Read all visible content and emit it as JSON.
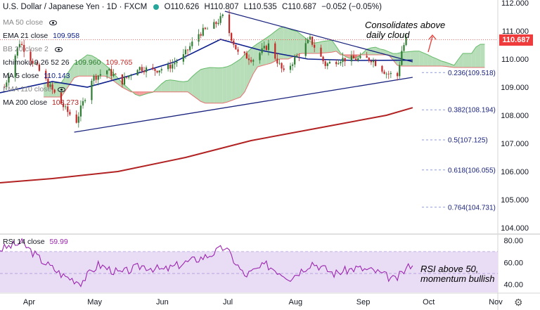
{
  "header": {
    "symbol": "U.S. Dollar / Japanese Yen · 1D · FXCM",
    "open": "O110.626",
    "high": "H110.807",
    "low": "L110.535",
    "close": "C110.687",
    "change": "−0.052 (−0.05%)"
  },
  "indicators": {
    "ma50": {
      "label": "MA 50 close"
    },
    "ema21": {
      "label": "EMA 21 close",
      "value": "109.958"
    },
    "bb": {
      "label": "BB 20 close 2"
    },
    "ichimoku": {
      "label": "Ichimoku 9 26 52 26",
      "value1": "109.960",
      "value2": "109.765"
    },
    "ma5": {
      "label": "MA 5 close",
      "value": "110.143"
    },
    "ema110": {
      "label": "EMA 110 close"
    },
    "ma200": {
      "label": "MA 200 close",
      "value": "108.273"
    },
    "rsi": {
      "label": "RSI 14 close",
      "value": "59.99"
    }
  },
  "annotations": {
    "consolidates_line1": "Consolidates above",
    "consolidates_line2": "daily cloud",
    "rsi_line1": "RSI above 50,",
    "rsi_line2": "momentum bullish"
  },
  "price_tag": "110.687",
  "colors": {
    "ma200": "#b22222",
    "ema21": "#0d1f8c",
    "cloud_bull": "#a5d6a7",
    "cloud_bear": "#f48a8a",
    "candle_up": "#2e7d32",
    "candle_down": "#c62828",
    "rsi_line": "#9c27b0",
    "rsi_band": "#e9dcf5"
  },
  "chart_data": {
    "type": "candlestick",
    "title": "U.S. Dollar / Japanese Yen · 1D · FXCM",
    "x_tick_labels": [
      "Apr",
      "May",
      "Jun",
      "Jul",
      "Aug",
      "Sep",
      "Oct",
      "Nov"
    ],
    "y_tick_labels": [
      "112.000",
      "111.000",
      "110.000",
      "109.000",
      "108.000",
      "107.000",
      "106.000",
      "105.000",
      "104.000"
    ],
    "ylim": [
      103.8,
      112.1
    ],
    "current_price": 110.687,
    "close_series": {
      "name": "close",
      "points": [
        [
          "2021-03-24",
          109.0
        ],
        [
          "2021-03-31",
          110.6
        ],
        [
          "2021-04-07",
          109.8
        ],
        [
          "2021-04-14",
          109.0
        ],
        [
          "2021-04-21",
          108.2
        ],
        [
          "2021-04-26",
          107.8
        ],
        [
          "2021-05-03",
          109.3
        ],
        [
          "2021-05-10",
          109.6
        ],
        [
          "2021-05-17",
          109.2
        ],
        [
          "2021-05-24",
          109.7
        ],
        [
          "2021-05-31",
          109.6
        ],
        [
          "2021-06-07",
          109.7
        ],
        [
          "2021-06-14",
          110.1
        ],
        [
          "2021-06-21",
          110.9
        ],
        [
          "2021-06-28",
          111.2
        ],
        [
          "2021-07-02",
          111.5
        ],
        [
          "2021-07-09",
          110.2
        ],
        [
          "2021-07-16",
          110.0
        ],
        [
          "2021-07-23",
          110.5
        ],
        [
          "2021-07-30",
          109.5
        ],
        [
          "2021-08-06",
          110.2
        ],
        [
          "2021-08-11",
          110.7
        ],
        [
          "2021-08-18",
          109.8
        ],
        [
          "2021-08-25",
          110.0
        ],
        [
          "2021-09-01",
          110.0
        ],
        [
          "2021-09-08",
          110.0
        ],
        [
          "2021-09-15",
          109.5
        ],
        [
          "2021-09-20",
          109.4
        ],
        [
          "2021-09-22",
          110.3
        ],
        [
          "2021-09-24",
          110.7
        ]
      ]
    },
    "ma200_series": {
      "name": "MA 200 close",
      "points": [
        [
          "2021-03-22",
          105.6
        ],
        [
          "2021-04-15",
          105.75
        ],
        [
          "2021-05-15",
          106.0
        ],
        [
          "2021-06-15",
          106.5
        ],
        [
          "2021-07-15",
          107.1
        ],
        [
          "2021-08-15",
          107.55
        ],
        [
          "2021-09-15",
          108.0
        ],
        [
          "2021-09-27",
          108.27
        ]
      ]
    },
    "ema21_series": {
      "name": "EMA 21 close",
      "points": [
        [
          "2021-03-22",
          108.8
        ],
        [
          "2021-04-15",
          109.2
        ],
        [
          "2021-05-01",
          109.0
        ],
        [
          "2021-05-20",
          109.4
        ],
        [
          "2021-06-10",
          109.9
        ],
        [
          "2021-07-01",
          110.7
        ],
        [
          "2021-07-20",
          110.3
        ],
        [
          "2021-08-10",
          110.0
        ],
        [
          "2021-09-01",
          109.95
        ],
        [
          "2021-09-27",
          109.96
        ]
      ]
    },
    "trendlines": [
      {
        "from": [
          "2021-04-25",
          107.4
        ],
        "to": [
          "2021-09-27",
          109.35
        ]
      },
      {
        "from": [
          "2021-07-03",
          111.7
        ],
        "to": [
          "2021-09-27",
          109.9
        ]
      }
    ],
    "fibonacci_levels": [
      {
        "label": "0.236(109.518)",
        "value": 109.518
      },
      {
        "label": "0.382(108.194)",
        "value": 108.194
      },
      {
        "label": "0.5(107.125)",
        "value": 107.125
      },
      {
        "label": "0.618(106.055)",
        "value": 106.055
      },
      {
        "label": "0.764(104.731)",
        "value": 104.731
      }
    ],
    "rsi": {
      "name": "RSI 14 close",
      "ylim": [
        34,
        84
      ],
      "y_tick_labels": [
        "80.00",
        "60.00",
        "40.00"
      ],
      "band": [
        30,
        70
      ],
      "points": [
        [
          "2021-03-22",
          72
        ],
        [
          "2021-04-01",
          78
        ],
        [
          "2021-04-10",
          62
        ],
        [
          "2021-04-20",
          48
        ],
        [
          "2021-04-28",
          42
        ],
        [
          "2021-05-06",
          58
        ],
        [
          "2021-05-16",
          50
        ],
        [
          "2021-05-26",
          57
        ],
        [
          "2021-06-05",
          53
        ],
        [
          "2021-06-15",
          60
        ],
        [
          "2021-06-25",
          66
        ],
        [
          "2021-07-03",
          74
        ],
        [
          "2021-07-12",
          48
        ],
        [
          "2021-07-22",
          58
        ],
        [
          "2021-08-02",
          46
        ],
        [
          "2021-08-12",
          60
        ],
        [
          "2021-08-22",
          50
        ],
        [
          "2021-09-01",
          55
        ],
        [
          "2021-09-10",
          52
        ],
        [
          "2021-09-19",
          44
        ],
        [
          "2021-09-27",
          60
        ]
      ]
    }
  }
}
